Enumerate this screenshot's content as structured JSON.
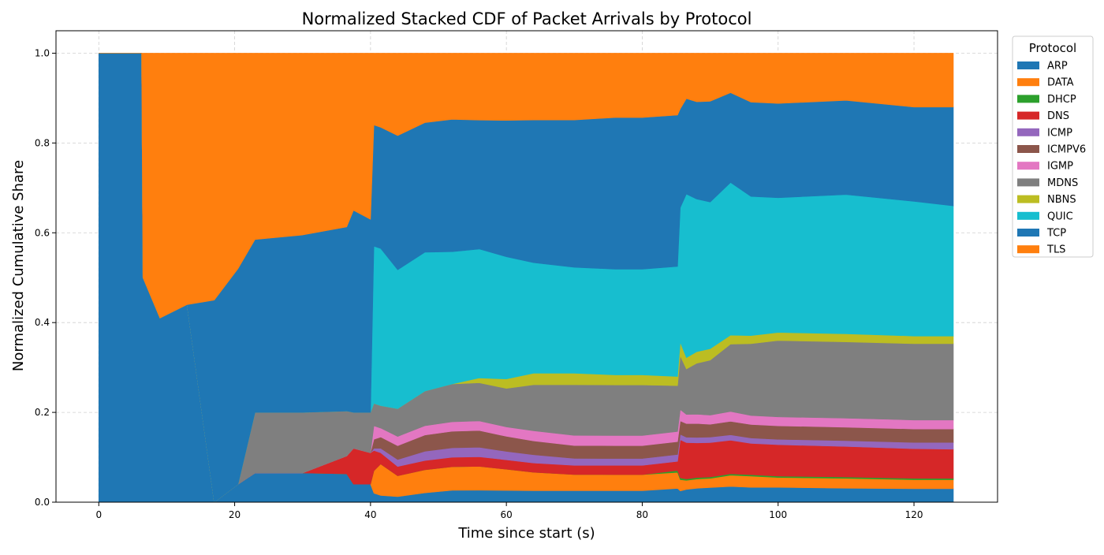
{
  "chart_data": {
    "type": "area",
    "stacked": true,
    "normalized": true,
    "title": "Normalized Stacked CDF of Packet Arrivals by Protocol",
    "xlabel": "Time since start (s)",
    "ylabel": "Normalized Cumulative Share",
    "xlim": [
      -6.3,
      132.3
    ],
    "ylim": [
      0,
      1.05
    ],
    "xticks": [
      0,
      20,
      40,
      60,
      80,
      100,
      120
    ],
    "yticks": [
      0.0,
      0.2,
      0.4,
      0.6,
      0.8,
      1.0
    ],
    "xtick_labels": [
      "0",
      "20",
      "40",
      "60",
      "80",
      "100",
      "120"
    ],
    "ytick_labels": [
      "0.0",
      "0.2",
      "0.4",
      "0.6",
      "0.8",
      "1.0"
    ],
    "grid": true,
    "legend": {
      "title": "Protocol",
      "placement": "outside-right-top"
    },
    "x": [
      0,
      6.3,
      6.5,
      9,
      13,
      17,
      20.5,
      23,
      30,
      36.5,
      37.5,
      40,
      40.5,
      41.5,
      44,
      48,
      52,
      56,
      60,
      64,
      70,
      76,
      80,
      85.2,
      85.6,
      86.5,
      88,
      90,
      93,
      96,
      100,
      110,
      120,
      125.8
    ],
    "series": [
      {
        "name": "ARP",
        "color": "#1f77b4",
        "values": [
          1.0,
          1.0,
          0.5,
          0.41,
          0.44,
          0.0,
          0.04,
          0.065,
          0.065,
          0.063,
          0.04,
          0.04,
          0.02,
          0.015,
          0.012,
          0.02,
          0.025,
          0.025,
          0.025,
          0.025,
          0.025,
          0.025,
          0.025,
          0.03,
          0.025,
          0.028,
          0.03,
          0.032,
          0.035,
          0.033,
          0.033,
          0.031,
          0.03,
          0.03
        ]
      },
      {
        "name": "DATA",
        "color": "#ff7f0e",
        "values": [
          0,
          0,
          0,
          0,
          0,
          0,
          0,
          0,
          0,
          0,
          0,
          0,
          0.05,
          0.07,
          0.045,
          0.05,
          0.05,
          0.05,
          0.045,
          0.04,
          0.035,
          0.035,
          0.035,
          0.035,
          0.025,
          0.02,
          0.02,
          0.02,
          0.025,
          0.025,
          0.022,
          0.022,
          0.02,
          0.02
        ]
      },
      {
        "name": "DHCP",
        "color": "#2ca02c",
        "values": [
          0,
          0,
          0,
          0,
          0,
          0,
          0,
          0,
          0,
          0,
          0,
          0,
          0,
          0,
          0,
          0,
          0,
          0,
          0,
          0,
          0,
          0,
          0,
          0.004,
          0.004,
          0.003,
          0.003,
          0.003,
          0.003,
          0.003,
          0.003,
          0.003,
          0.003,
          0.003
        ]
      },
      {
        "name": "DNS",
        "color": "#d62728",
        "values": [
          0,
          0,
          0,
          0,
          0,
          0,
          0,
          0,
          0,
          0.04,
          0.08,
          0.07,
          0.045,
          0.025,
          0.02,
          0.02,
          0.02,
          0.02,
          0.02,
          0.02,
          0.02,
          0.02,
          0.02,
          0.02,
          0.085,
          0.08,
          0.075,
          0.075,
          0.075,
          0.07,
          0.07,
          0.068,
          0.066,
          0.065
        ]
      },
      {
        "name": "ICMP",
        "color": "#9467bd",
        "values": [
          0,
          0,
          0,
          0,
          0,
          0,
          0,
          0,
          0,
          0,
          0,
          0,
          0.005,
          0.01,
          0.015,
          0.02,
          0.02,
          0.02,
          0.018,
          0.018,
          0.015,
          0.015,
          0.015,
          0.015,
          0.012,
          0.012,
          0.012,
          0.012,
          0.012,
          0.012,
          0.012,
          0.013,
          0.014,
          0.015
        ]
      },
      {
        "name": "ICMPV6",
        "color": "#8c564b",
        "values": [
          0,
          0,
          0,
          0,
          0,
          0,
          0,
          0,
          0,
          0,
          0,
          0,
          0.02,
          0.025,
          0.03,
          0.035,
          0.035,
          0.035,
          0.032,
          0.03,
          0.028,
          0.028,
          0.028,
          0.028,
          0.03,
          0.03,
          0.03,
          0.028,
          0.03,
          0.03,
          0.03,
          0.03,
          0.03,
          0.03
        ]
      },
      {
        "name": "IGMP",
        "color": "#e377c2",
        "values": [
          0,
          0,
          0,
          0,
          0,
          0,
          0,
          0,
          0,
          0,
          0,
          0,
          0.03,
          0.02,
          0.02,
          0.02,
          0.02,
          0.02,
          0.02,
          0.022,
          0.022,
          0.022,
          0.022,
          0.022,
          0.025,
          0.02,
          0.02,
          0.02,
          0.022,
          0.02,
          0.02,
          0.02,
          0.02,
          0.02
        ]
      },
      {
        "name": "MDNS",
        "color": "#7f7f7f",
        "values": [
          0,
          0,
          0,
          0,
          0,
          0,
          0,
          0.135,
          0.135,
          0.1,
          0.08,
          0.09,
          0.05,
          0.05,
          0.06,
          0.075,
          0.08,
          0.08,
          0.082,
          0.1,
          0.11,
          0.11,
          0.11,
          0.1,
          0.12,
          0.1,
          0.11,
          0.12,
          0.15,
          0.16,
          0.17,
          0.17,
          0.17,
          0.17
        ]
      },
      {
        "name": "NBNS",
        "color": "#bcbd22",
        "values": [
          0,
          0,
          0,
          0,
          0,
          0,
          0,
          0,
          0,
          0,
          0,
          0,
          0,
          0,
          0,
          0,
          0,
          0.01,
          0.02,
          0.025,
          0.025,
          0.022,
          0.022,
          0.02,
          0.03,
          0.025,
          0.025,
          0.025,
          0.02,
          0.018,
          0.018,
          0.018,
          0.017,
          0.017
        ]
      },
      {
        "name": "QUIC",
        "color": "#17becf",
        "values": [
          0,
          0,
          0,
          0,
          0,
          0,
          0,
          0,
          0,
          0,
          0,
          0,
          0.35,
          0.35,
          0.3,
          0.3,
          0.28,
          0.27,
          0.26,
          0.24,
          0.23,
          0.23,
          0.23,
          0.24,
          0.3,
          0.36,
          0.33,
          0.32,
          0.34,
          0.31,
          0.3,
          0.31,
          0.3,
          0.29
        ]
      },
      {
        "name": "TCP",
        "color": "#1f77b4",
        "values": [
          0,
          0,
          0,
          0,
          0,
          0.45,
          0.48,
          0.385,
          0.395,
          0.41,
          0.45,
          0.43,
          0.27,
          0.27,
          0.29,
          0.28,
          0.28,
          0.27,
          0.29,
          0.31,
          0.32,
          0.33,
          0.33,
          0.33,
          0.22,
          0.21,
          0.21,
          0.22,
          0.2,
          0.21,
          0.21,
          0.21,
          0.21,
          0.22
        ]
      },
      {
        "name": "TLS",
        "color": "#ff7f0e",
        "values": [
          0,
          0,
          0.5,
          0.59,
          0.56,
          0.55,
          0.48,
          0.415,
          0.405,
          0.387,
          0.35,
          0.37,
          0.16,
          0.165,
          0.178,
          0.15,
          0.14,
          0.14,
          0.143,
          0.145,
          0.145,
          0.14,
          0.14,
          0.135,
          0.124,
          0.1,
          0.105,
          0.105,
          0.088,
          0.109,
          0.112,
          0.105,
          0.12,
          0.12
        ]
      }
    ]
  }
}
